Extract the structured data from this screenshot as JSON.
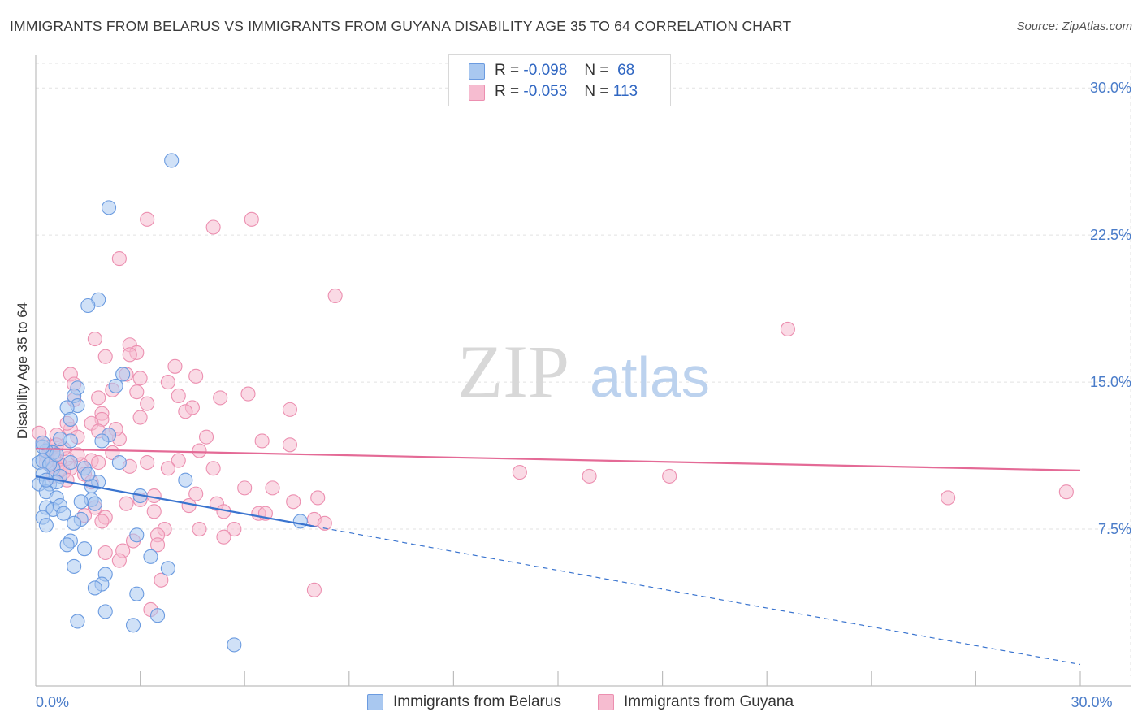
{
  "title": "IMMIGRANTS FROM BELARUS VS IMMIGRANTS FROM GUYANA DISABILITY AGE 35 TO 64 CORRELATION CHART",
  "source": "Source: ZipAtlas.com",
  "watermark": {
    "zip": "ZIP",
    "atlas": "atlas"
  },
  "colors": {
    "belarus_fill": "#a9c8f0",
    "belarus_stroke": "#6b9be0",
    "belarus_line": "#3a74cf",
    "guyana_fill": "#f6bcd0",
    "guyana_stroke": "#ec8fb0",
    "guyana_line": "#e46a96",
    "tick_text": "#4a7cc9",
    "grid": "#e2e2e2"
  },
  "stats": [
    {
      "series": "Immigrants from Belarus",
      "r_label": "R =",
      "r_value": "-0.098",
      "n_label": "N =",
      "n_value": "68"
    },
    {
      "series": "Immigrants from Guyana",
      "r_label": "R =",
      "r_value": "-0.053",
      "n_label": "N =",
      "n_value": "113"
    }
  ],
  "legend": [
    "Immigrants from Belarus",
    "Immigrants from Guyana"
  ],
  "chart_data": {
    "type": "scatter",
    "title": "IMMIGRANTS FROM BELARUS VS IMMIGRANTS FROM GUYANA DISABILITY AGE 35 TO 64 CORRELATION CHART",
    "xlabel": "",
    "ylabel": "Disability Age 35 to 64",
    "xlim": [
      0,
      30
    ],
    "ylim": [
      0,
      31.5
    ],
    "x_tick_labels": [
      {
        "value": 0,
        "label": "0.0%"
      },
      {
        "value": 30,
        "label": "30.0%"
      }
    ],
    "x_minor_ticks": [
      3,
      6,
      9,
      12,
      15,
      18,
      21,
      24,
      27,
      30
    ],
    "y_ticks": [
      {
        "value": 7.5,
        "label": "7.5%"
      },
      {
        "value": 15,
        "label": "15.0%"
      },
      {
        "value": 22.5,
        "label": "22.5%"
      },
      {
        "value": 30,
        "label": "30.0%"
      }
    ],
    "grid": true,
    "series": [
      {
        "name": "Immigrants from Belarus",
        "r": -0.098,
        "n": 68,
        "trend": {
          "solid_x": [
            0,
            8
          ],
          "dashed_x": [
            8,
            30
          ],
          "y0": 10.2,
          "slope": -0.32
        },
        "points": [
          [
            3.9,
            26.3
          ],
          [
            2.1,
            23.9
          ],
          [
            1.8,
            19.2
          ],
          [
            1.5,
            18.9
          ],
          [
            2.5,
            15.4
          ],
          [
            1.2,
            14.7
          ],
          [
            1.1,
            14.3
          ],
          [
            1.2,
            13.8
          ],
          [
            0.9,
            13.7
          ],
          [
            2.3,
            14.8
          ],
          [
            1.0,
            13.1
          ],
          [
            2.1,
            12.3
          ],
          [
            1.9,
            12.0
          ],
          [
            1.0,
            12.0
          ],
          [
            0.7,
            12.1
          ],
          [
            0.5,
            11.4
          ],
          [
            0.3,
            11.5
          ],
          [
            0.2,
            11.7
          ],
          [
            0.1,
            10.9
          ],
          [
            0.2,
            11.0
          ],
          [
            0.5,
            10.6
          ],
          [
            0.4,
            10.8
          ],
          [
            1.0,
            10.9
          ],
          [
            1.4,
            10.6
          ],
          [
            0.7,
            10.2
          ],
          [
            0.2,
            10.3
          ],
          [
            0.1,
            9.8
          ],
          [
            0.4,
            9.8
          ],
          [
            0.6,
            9.9
          ],
          [
            1.8,
            9.9
          ],
          [
            2.4,
            10.9
          ],
          [
            3.0,
            9.2
          ],
          [
            4.3,
            10.0
          ],
          [
            1.6,
            9.7
          ],
          [
            0.3,
            9.4
          ],
          [
            0.6,
            9.1
          ],
          [
            1.6,
            9.0
          ],
          [
            1.7,
            8.8
          ],
          [
            0.3,
            8.6
          ],
          [
            0.5,
            8.5
          ],
          [
            0.7,
            8.7
          ],
          [
            0.8,
            8.3
          ],
          [
            0.2,
            8.1
          ],
          [
            1.3,
            8.0
          ],
          [
            0.3,
            7.7
          ],
          [
            1.1,
            7.8
          ],
          [
            7.6,
            7.9
          ],
          [
            2.9,
            7.2
          ],
          [
            1.0,
            6.9
          ],
          [
            0.9,
            6.7
          ],
          [
            1.4,
            6.5
          ],
          [
            3.3,
            6.1
          ],
          [
            1.1,
            5.6
          ],
          [
            3.8,
            5.5
          ],
          [
            2.0,
            5.2
          ],
          [
            1.9,
            4.7
          ],
          [
            1.7,
            4.5
          ],
          [
            2.9,
            4.2
          ],
          [
            2.0,
            3.3
          ],
          [
            3.5,
            3.1
          ],
          [
            1.2,
            2.8
          ],
          [
            2.8,
            2.6
          ],
          [
            5.7,
            1.6
          ],
          [
            0.2,
            11.9
          ],
          [
            0.6,
            11.3
          ],
          [
            0.3,
            10.0
          ],
          [
            1.5,
            10.3
          ],
          [
            1.3,
            8.9
          ]
        ]
      },
      {
        "name": "Immigrants from Guyana",
        "r": -0.053,
        "n": 113,
        "trend": {
          "solid_x": [
            0,
            30
          ],
          "y0": 11.6,
          "slope": -0.037
        },
        "points": [
          [
            3.2,
            23.3
          ],
          [
            6.2,
            23.3
          ],
          [
            5.1,
            22.9
          ],
          [
            2.4,
            21.3
          ],
          [
            8.6,
            19.4
          ],
          [
            21.6,
            17.7
          ],
          [
            1.7,
            17.2
          ],
          [
            2.7,
            16.9
          ],
          [
            2.9,
            16.5
          ],
          [
            2.7,
            16.4
          ],
          [
            2.0,
            16.3
          ],
          [
            4.0,
            15.8
          ],
          [
            4.6,
            15.3
          ],
          [
            1.0,
            15.4
          ],
          [
            2.6,
            15.4
          ],
          [
            3.0,
            15.2
          ],
          [
            3.8,
            15.0
          ],
          [
            1.1,
            14.9
          ],
          [
            2.2,
            14.6
          ],
          [
            2.9,
            14.5
          ],
          [
            6.1,
            14.4
          ],
          [
            5.3,
            14.2
          ],
          [
            1.1,
            14.1
          ],
          [
            3.2,
            13.9
          ],
          [
            4.5,
            13.7
          ],
          [
            7.3,
            13.6
          ],
          [
            4.3,
            13.5
          ],
          [
            1.9,
            13.4
          ],
          [
            3.0,
            13.2
          ],
          [
            1.9,
            13.1
          ],
          [
            1.6,
            12.9
          ],
          [
            1.0,
            12.6
          ],
          [
            1.8,
            12.5
          ],
          [
            0.6,
            12.3
          ],
          [
            0.1,
            12.4
          ],
          [
            2.4,
            12.1
          ],
          [
            1.2,
            12.2
          ],
          [
            7.3,
            11.8
          ],
          [
            4.7,
            11.5
          ],
          [
            0.4,
            11.5
          ],
          [
            0.5,
            11.4
          ],
          [
            0.3,
            11.2
          ],
          [
            0.6,
            11.0
          ],
          [
            0.9,
            11.1
          ],
          [
            1.6,
            11.0
          ],
          [
            1.8,
            10.9
          ],
          [
            1.3,
            10.8
          ],
          [
            0.7,
            10.8
          ],
          [
            0.5,
            10.7
          ],
          [
            1.0,
            10.6
          ],
          [
            3.2,
            10.9
          ],
          [
            4.1,
            11.0
          ],
          [
            3.8,
            10.6
          ],
          [
            5.1,
            10.6
          ],
          [
            2.7,
            10.7
          ],
          [
            0.8,
            10.4
          ],
          [
            1.4,
            10.3
          ],
          [
            0.5,
            10.2
          ],
          [
            0.9,
            10.0
          ],
          [
            1.6,
            9.9
          ],
          [
            13.9,
            10.4
          ],
          [
            15.9,
            10.2
          ],
          [
            18.2,
            10.2
          ],
          [
            6.0,
            9.6
          ],
          [
            6.8,
            9.6
          ],
          [
            4.6,
            9.3
          ],
          [
            3.4,
            9.2
          ],
          [
            3.0,
            9.0
          ],
          [
            7.4,
            8.9
          ],
          [
            8.1,
            9.1
          ],
          [
            26.2,
            9.1
          ],
          [
            29.6,
            9.4
          ],
          [
            5.2,
            8.8
          ],
          [
            4.4,
            8.7
          ],
          [
            1.7,
            8.6
          ],
          [
            2.6,
            8.8
          ],
          [
            6.4,
            8.3
          ],
          [
            6.6,
            8.3
          ],
          [
            3.4,
            8.4
          ],
          [
            5.4,
            8.4
          ],
          [
            1.4,
            8.2
          ],
          [
            2.0,
            8.1
          ],
          [
            1.9,
            7.9
          ],
          [
            8.0,
            8.0
          ],
          [
            8.3,
            7.8
          ],
          [
            3.7,
            7.5
          ],
          [
            4.7,
            7.5
          ],
          [
            5.7,
            7.5
          ],
          [
            3.5,
            7.2
          ],
          [
            5.4,
            7.1
          ],
          [
            2.8,
            6.9
          ],
          [
            3.5,
            6.7
          ],
          [
            2.5,
            6.4
          ],
          [
            2.0,
            6.3
          ],
          [
            2.4,
            5.9
          ],
          [
            3.6,
            4.9
          ],
          [
            8.0,
            4.4
          ],
          [
            3.3,
            3.4
          ],
          [
            0.2,
            11.9
          ],
          [
            0.4,
            11.7
          ],
          [
            0.8,
            11.6
          ],
          [
            1.2,
            11.3
          ],
          [
            0.3,
            10.9
          ],
          [
            0.7,
            10.5
          ],
          [
            2.2,
            11.4
          ],
          [
            4.1,
            14.3
          ],
          [
            2.3,
            12.6
          ],
          [
            1.8,
            14.2
          ],
          [
            0.6,
            11.8
          ],
          [
            0.9,
            12.9
          ],
          [
            4.9,
            12.2
          ],
          [
            6.5,
            12.0
          ],
          [
            2.1,
            12.3
          ]
        ]
      }
    ]
  }
}
